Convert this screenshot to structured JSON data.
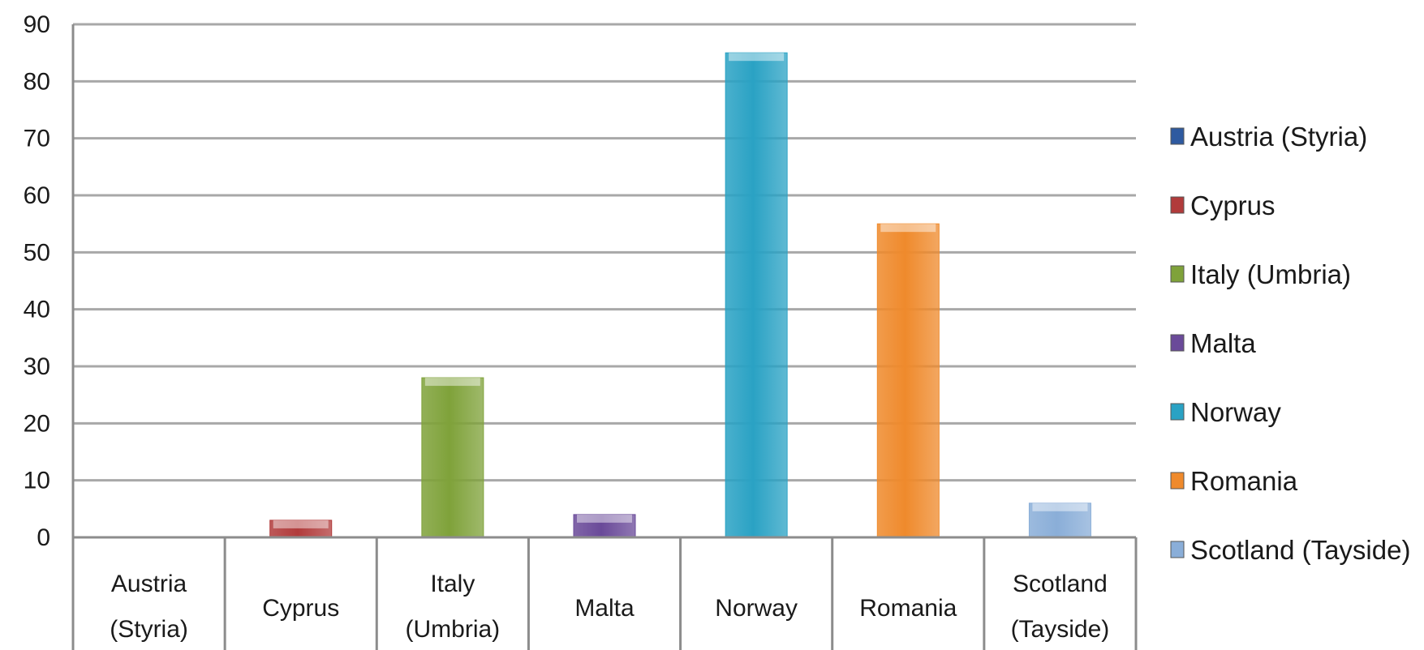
{
  "chart_data": {
    "type": "bar",
    "title": "",
    "xlabel": "",
    "ylabel": "",
    "categories": [
      [
        "Austria",
        "(Styria)"
      ],
      [
        "Cyprus"
      ],
      [
        "Italy",
        "(Umbria)"
      ],
      [
        "Malta"
      ],
      [
        "Norway"
      ],
      [
        "Romania"
      ],
      [
        "Scotland",
        "(Tayside)"
      ]
    ],
    "series": [
      {
        "name": "Austria (Styria)",
        "values": [
          0,
          null,
          null,
          null,
          null,
          null,
          null
        ],
        "color": "#2e5aa0"
      },
      {
        "name": "Cyprus",
        "values": [
          null,
          3,
          null,
          null,
          null,
          null,
          null
        ],
        "color": "#b13b3b"
      },
      {
        "name": "Italy (Umbria)",
        "values": [
          null,
          null,
          28,
          null,
          null,
          null,
          null
        ],
        "color": "#7fa23a"
      },
      {
        "name": "Malta",
        "values": [
          null,
          null,
          null,
          4,
          null,
          null,
          null
        ],
        "color": "#6a4a99"
      },
      {
        "name": "Norway",
        "values": [
          null,
          null,
          null,
          null,
          85,
          null,
          null
        ],
        "color": "#2aa2c4"
      },
      {
        "name": "Romania",
        "values": [
          null,
          null,
          null,
          null,
          null,
          55,
          null
        ],
        "color": "#ef8a2c"
      },
      {
        "name": "Scotland (Tayside)",
        "values": [
          null,
          null,
          null,
          null,
          null,
          null,
          6
        ],
        "color": "#8aaed8"
      }
    ],
    "ylim": [
      0,
      90
    ],
    "yticks": [
      0,
      10,
      20,
      30,
      40,
      50,
      60,
      70,
      80,
      90
    ],
    "grid": true,
    "legend_position": "right"
  }
}
